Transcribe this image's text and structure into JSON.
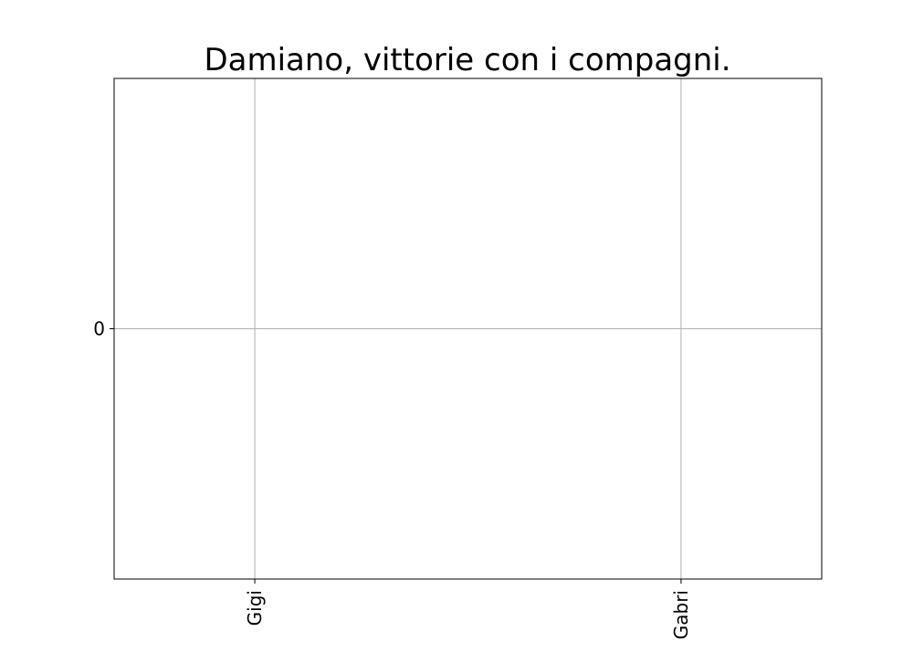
{
  "chart_data": {
    "type": "bar",
    "title": "Damiano, vittorie con i compagni.",
    "xlabel": "",
    "ylabel": "",
    "categories": [
      "Gigi",
      "Gabri"
    ],
    "values": [
      0,
      0
    ],
    "ytick_labels": [
      "0"
    ],
    "yticks": [
      0
    ],
    "ylim": [
      -0.06,
      0.06
    ],
    "grid": true,
    "colors": {
      "grid": "#b0b0b0",
      "axes": "#000000",
      "background": "#ffffff"
    }
  }
}
